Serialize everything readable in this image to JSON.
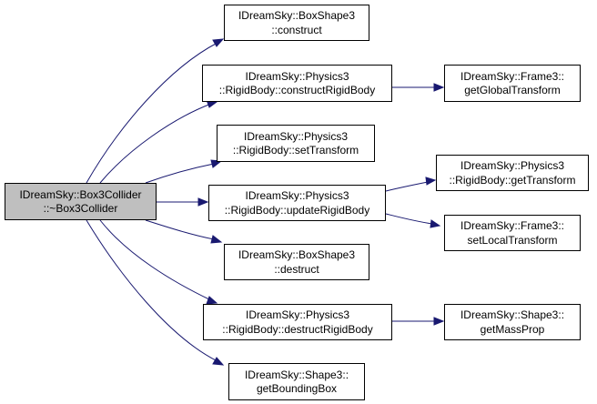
{
  "colors": {
    "edge": "#191970",
    "root_fill": "#bfbfbf",
    "node_fill": "#ffffff",
    "node_border": "#000000"
  },
  "nodes": {
    "root": [
      "IDreamSky::Box3Collider",
      "::~Box3Collider"
    ],
    "boxshape_construct": [
      "IDreamSky::BoxShape3",
      "::construct"
    ],
    "construct_rigidbody": [
      "IDreamSky::Physics3",
      "::RigidBody::constructRigidBody"
    ],
    "frame_global": [
      "IDreamSky::Frame3::",
      "getGlobalTransform"
    ],
    "set_transform": [
      "IDreamSky::Physics3",
      "::RigidBody::setTransform"
    ],
    "update_rigidbody": [
      "IDreamSky::Physics3",
      "::RigidBody::updateRigidBody"
    ],
    "get_transform": [
      "IDreamSky::Physics3",
      "::RigidBody::getTransform"
    ],
    "frame_local": [
      "IDreamSky::Frame3::",
      "setLocalTransform"
    ],
    "boxshape_destruct": [
      "IDreamSky::BoxShape3",
      "::destruct"
    ],
    "destruct_rigidbody": [
      "IDreamSky::Physics3",
      "::RigidBody::destructRigidBody"
    ],
    "shape_massprop": [
      "IDreamSky::Shape3::",
      "getMassProp"
    ],
    "shape_bbox": [
      "IDreamSky::Shape3::",
      "getBoundingBox"
    ]
  }
}
